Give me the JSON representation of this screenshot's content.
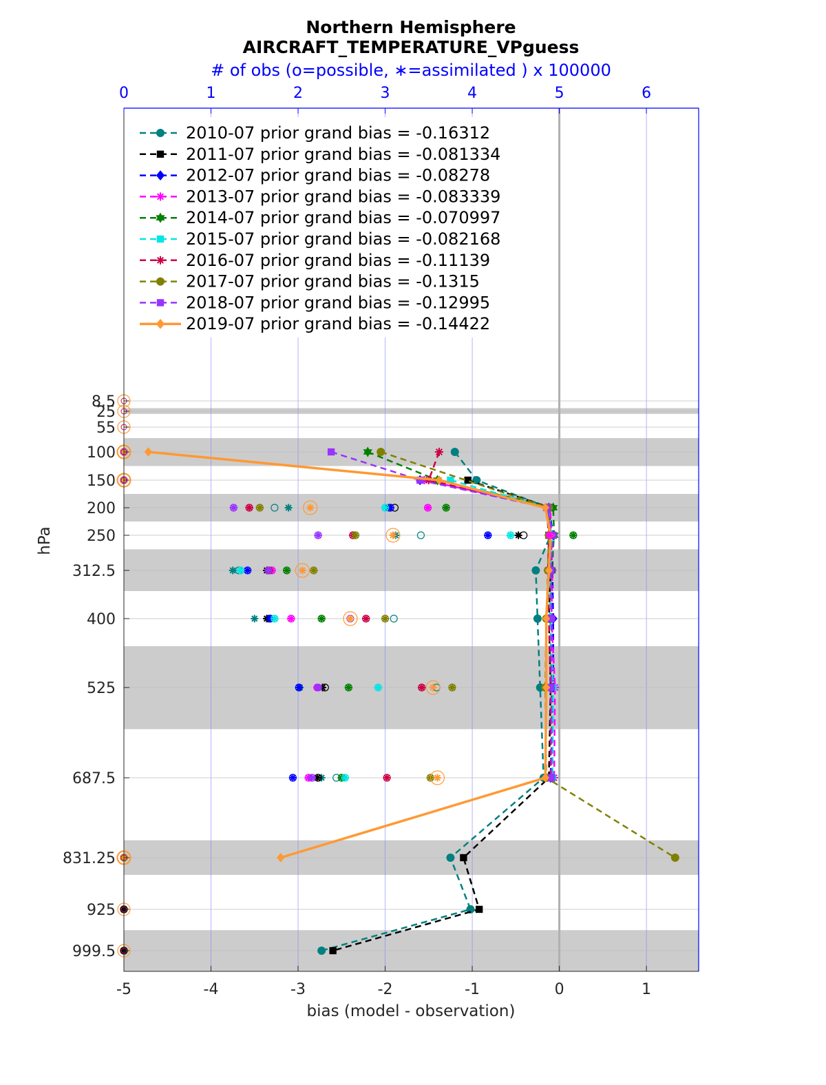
{
  "chart_data": {
    "type": "line",
    "title": "Northern Hemisphere",
    "subtitle": "AIRCRAFT_TEMPERATURE_VPguess",
    "top_axis_label": "# of obs (o=possible, ∗=assimilated ) x 100000",
    "xlabel": "bias (model - observation)",
    "ylabel": "hPa",
    "xlim": [
      -5,
      1.6
    ],
    "xticks": [
      "-5",
      "-4",
      "-3",
      "-2",
      "-1",
      "0",
      "1"
    ],
    "top_xlim": [
      0,
      6.6
    ],
    "top_xticks": [
      "0",
      "1",
      "2",
      "3",
      "4",
      "5",
      "6"
    ],
    "y_axis": "pressure (hPa), increasing downward",
    "y_levels": [
      "8.5",
      "25",
      "55",
      "100",
      "150",
      "200",
      "250",
      "312.5",
      "400",
      "525",
      "687.5",
      "831.25",
      "925",
      "999.5"
    ],
    "shaded_layers_hPa": [
      [
        20,
        30
      ],
      [
        75,
        125
      ],
      [
        175,
        225
      ],
      [
        275,
        350
      ],
      [
        450,
        600
      ],
      [
        800,
        862.5
      ],
      [
        962.5,
        1037
      ]
    ],
    "grid": true,
    "legend_position": "top-left",
    "zero_line": true,
    "series": [
      {
        "name": "2010-07 prior grand bias = -0.16312",
        "color": "#008080",
        "marker": "circle",
        "dash": true,
        "levels": [
          100,
          150,
          200,
          250,
          312.5,
          400,
          525,
          687.5,
          831.25,
          925,
          999.5
        ],
        "values": [
          -1.2,
          -0.95,
          -0.12,
          -0.1,
          -0.27,
          -0.25,
          -0.22,
          -0.18,
          -1.25,
          -1.02,
          -2.73
        ],
        "obs_possible": [
          0,
          0,
          1.73,
          3.41,
          1.32,
          3.1,
          3.59,
          2.44,
          0,
          0,
          0
        ],
        "obs_assimilated": [
          0,
          0,
          1.89,
          3.12,
          1.25,
          1.5,
          2.02,
          2.27,
          0,
          0,
          0
        ]
      },
      {
        "name": "2011-07 prior grand bias = -0.081334",
        "color": "#000000",
        "marker": "square",
        "dash": true,
        "levels": [
          150,
          200,
          250,
          312.5,
          400,
          525,
          687.5,
          831.25,
          925,
          999.5
        ],
        "values": [
          -1.05,
          -0.1,
          -0.12,
          -0.1,
          -0.12,
          -0.1,
          -0.12,
          -1.1,
          -0.92,
          -2.6
        ],
        "obs_possible": [
          0,
          3.11,
          4.59,
          1.66,
          1.67,
          2.31,
          2.23,
          0,
          0,
          0
        ],
        "obs_assimilated": [
          0,
          3.04,
          4.53,
          1.64,
          1.64,
          2.28,
          2.22,
          0,
          0,
          0
        ]
      },
      {
        "name": "2012-07 prior grand bias = -0.08278",
        "color": "#0000ff",
        "marker": "diamond",
        "dash": true,
        "levels": [
          150,
          200,
          250,
          312.5,
          400,
          525,
          687.5
        ],
        "values": [
          -1.6,
          -0.12,
          -0.07,
          -0.08,
          -0.07,
          -0.07,
          -0.1
        ],
        "obs_possible": [
          0,
          3.06,
          4.18,
          1.42,
          1.68,
          2.01,
          1.94
        ],
        "obs_assimilated": [
          0,
          3.06,
          4.18,
          1.42,
          1.68,
          2.01,
          1.94
        ]
      },
      {
        "name": "2013-07 prior grand bias = -0.083339",
        "color": "#ff00ff",
        "marker": "star",
        "dash": true,
        "levels": [
          150,
          200,
          250,
          312.5,
          400,
          525,
          687.5
        ],
        "values": [
          -1.55,
          -0.1,
          -0.1,
          -0.08,
          -0.09,
          -0.05,
          -0.06
        ],
        "obs_possible": [
          0,
          3.49,
          4.89,
          1.7,
          1.92,
          2.22,
          2.12
        ],
        "obs_assimilated": [
          0,
          3.49,
          4.89,
          1.7,
          1.92,
          2.22,
          2.12
        ]
      },
      {
        "name": "2014-07 prior grand bias = -0.070997",
        "color": "#008000",
        "marker": "hexagram",
        "dash": true,
        "levels": [
          100,
          150,
          200,
          250,
          312.5,
          400,
          525,
          687.5
        ],
        "values": [
          -2.2,
          -1.4,
          -0.07,
          -0.06,
          -0.09,
          -0.1,
          -0.09,
          -0.08
        ],
        "obs_possible": [
          0,
          0,
          3.7,
          5.16,
          1.87,
          2.27,
          2.58,
          2.5
        ],
        "obs_assimilated": [
          0,
          0,
          3.7,
          5.16,
          1.87,
          2.27,
          2.58,
          2.5
        ]
      },
      {
        "name": "2015-07 prior grand bias = -0.082168",
        "color": "#00e5e5",
        "marker": "square",
        "dash": true,
        "levels": [
          150,
          200,
          250,
          312.5,
          400,
          525,
          687.5
        ],
        "values": [
          -1.25,
          -0.13,
          -0.08,
          -0.1,
          -0.11,
          -0.07,
          -0.08
        ],
        "obs_possible": [
          0,
          3.0,
          4.44,
          1.34,
          1.73,
          2.92,
          2.54
        ],
        "obs_assimilated": [
          0,
          3.0,
          4.44,
          1.34,
          1.73,
          2.92,
          2.54
        ]
      },
      {
        "name": "2016-07 prior grand bias = -0.11139",
        "color": "#cc0044",
        "marker": "star",
        "dash": true,
        "levels": [
          100,
          150,
          200,
          250,
          312.5,
          400,
          525,
          687.5
        ],
        "values": [
          -1.38,
          -1.5,
          -0.15,
          -0.12,
          -0.13,
          -0.12,
          -0.1,
          -0.1
        ],
        "obs_possible": [
          0,
          0,
          1.44,
          2.63,
          1.67,
          2.78,
          3.42,
          3.02
        ],
        "obs_assimilated": [
          0,
          0,
          1.44,
          2.63,
          1.67,
          2.78,
          3.42,
          3.02
        ]
      },
      {
        "name": "2017-07 prior grand bias = -0.1315",
        "color": "#808000",
        "marker": "circle",
        "dash": true,
        "levels": [
          100,
          200,
          250,
          312.5,
          400,
          525,
          687.5,
          831.25
        ],
        "values": [
          -2.05,
          -0.12,
          -0.12,
          -0.13,
          -0.15,
          -0.16,
          -0.15,
          1.33
        ],
        "obs_possible": [
          0,
          1.56,
          2.66,
          2.18,
          3.0,
          3.77,
          3.52,
          0
        ],
        "obs_assimilated": [
          0,
          1.56,
          2.66,
          2.18,
          3.0,
          3.77,
          3.52,
          0
        ]
      },
      {
        "name": "2018-07 prior grand bias = -0.12995",
        "color": "#9933ff",
        "marker": "square",
        "dash": true,
        "levels": [
          100,
          150,
          200,
          250,
          312.5,
          400,
          525,
          687.5
        ],
        "values": [
          -2.62,
          -1.6,
          -0.14,
          -0.07,
          -0.1,
          -0.09,
          -0.09,
          -0.09
        ],
        "obs_possible": [
          0,
          0,
          1.26,
          2.23,
          1.66,
          2.6,
          2.23,
          2.16
        ],
        "obs_assimilated": [
          0,
          0,
          1.26,
          2.23,
          1.66,
          2.6,
          2.23,
          2.16
        ]
      },
      {
        "name": "2019-07 prior grand bias = -0.14422",
        "color": "#ff9933",
        "marker": "diamond",
        "dash": false,
        "levels": [
          100,
          150,
          200,
          250,
          312.5,
          400,
          525,
          687.5,
          831.25
        ],
        "values": [
          -4.72,
          -1.38,
          -0.16,
          -0.1,
          -0.12,
          -0.15,
          -0.15,
          -0.16,
          -3.2
        ],
        "obs_possible": [
          0,
          0,
          2.14,
          3.09,
          2.05,
          2.6,
          3.55,
          3.6,
          0
        ],
        "obs_assimilated": [
          0,
          0,
          2.14,
          3.09,
          2.05,
          2.6,
          3.55,
          3.6,
          0
        ]
      }
    ]
  }
}
